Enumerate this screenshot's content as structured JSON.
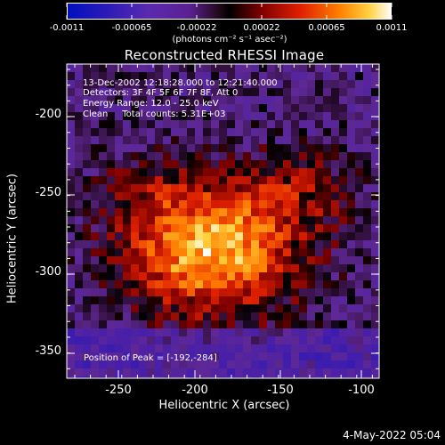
{
  "colorbar": {
    "tick_labels": [
      "-0.0011",
      "-0.00065",
      "-0.00022",
      "0.00022",
      "0.00065",
      "0.0011"
    ],
    "unit": "(photons cm⁻² s⁻¹ asec⁻²)",
    "range": [
      -0.0011,
      0.0011
    ]
  },
  "title": "Reconstructed RHESSI Image",
  "info": {
    "time_range": "13-Dec-2002 12:18:28.000 to 12:21:40.000",
    "detectors": "Detectors: 3F 4F 5F 6F 7F 8F, Att 0",
    "energy": "Energy Range: 12.0 - 25.0 keV",
    "method": "Clean     Total counts: 5.31E+03"
  },
  "peak": "Position of Peak = [-192,-284]",
  "axes": {
    "x_title": "Heliocentric X (arcsec)",
    "y_title": "Heliocentric Y (arcsec)",
    "x_ticks": [
      "-250",
      "-200",
      "-150",
      "-100"
    ],
    "y_ticks": [
      "-200",
      "-250",
      "-300",
      "-350"
    ]
  },
  "footer": "4-May-2022 05:04",
  "colors": {
    "background": "#000000",
    "foreground": "#ffffff"
  },
  "chart_data": {
    "type": "heatmap",
    "title": "Reconstructed RHESSI Image",
    "xlabel": "Heliocentric X (arcsec)",
    "ylabel": "Heliocentric Y (arcsec)",
    "xlim": [
      -280,
      -88
    ],
    "ylim": [
      -362,
      -176
    ],
    "peak_position": [
      -192,
      -284
    ],
    "value_range": [
      -0.0011,
      0.0011
    ]
  }
}
